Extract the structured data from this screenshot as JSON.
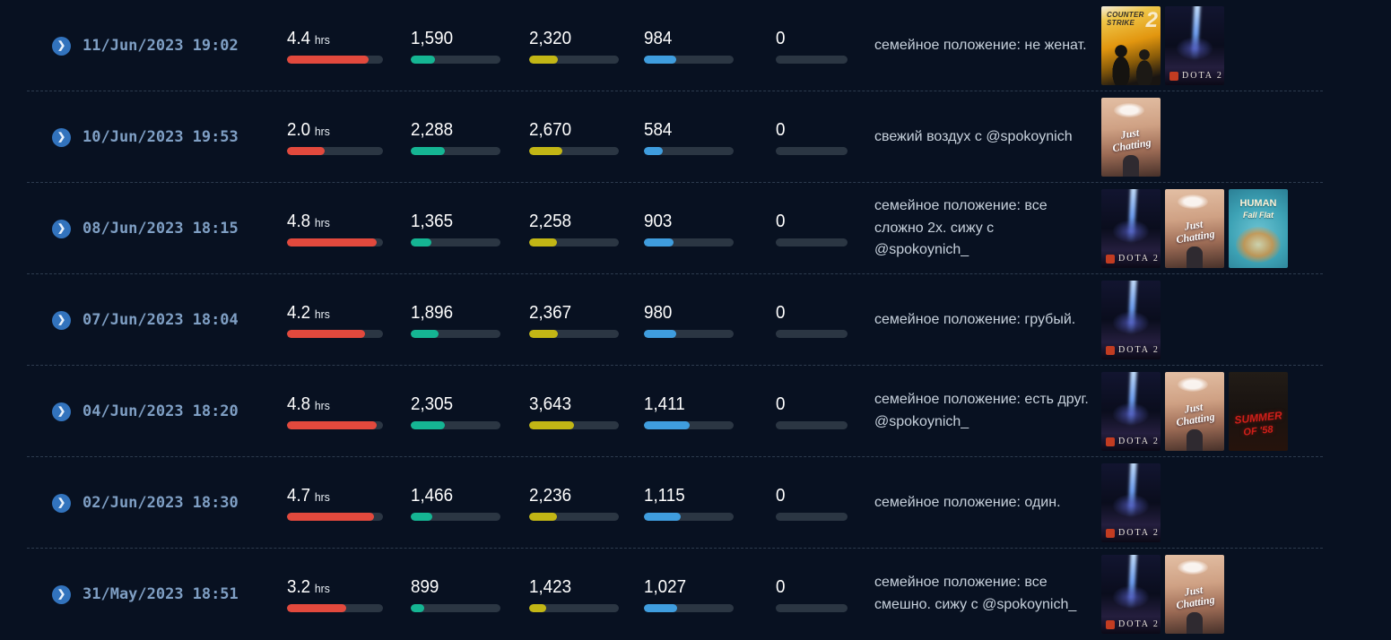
{
  "colors": {
    "red": "#e2493d",
    "green": "#15b593",
    "yellow": "#c2b615",
    "blue": "#3f9dde",
    "track": "#2b3643"
  },
  "thumbs": {
    "counter-strike-2": {
      "game": "Counter-Strike 2",
      "title_line1": "COUNTER",
      "title_line2": "STRIKE",
      "badge": "2"
    },
    "dota-2": {
      "game": "Dota 2",
      "label": "DOTA 2"
    },
    "just-chatting": {
      "game": "Just Chatting",
      "label_line1": "Just",
      "label_line2": "Chatting"
    },
    "human-fall-flat": {
      "game": "Human Fall Flat",
      "label_line1": "HUMAN",
      "label_line2": "Fall Flat"
    },
    "summer-of-58": {
      "game": "Summer of '58",
      "label_line1": "SUMMER",
      "label_line2": "OF '58"
    }
  },
  "streams": [
    {
      "date": "11/Jun/2023",
      "time": "19:02",
      "stats": [
        {
          "value": "4.4",
          "unit": "hrs",
          "pct": 85,
          "color": "red"
        },
        {
          "value": "1,590",
          "pct": 27,
          "color": "green"
        },
        {
          "value": "2,320",
          "pct": 32,
          "color": "yellow"
        },
        {
          "value": "984",
          "pct": 36,
          "color": "blue"
        },
        {
          "value": "0",
          "pct": 0,
          "color": "blue"
        }
      ],
      "title": "семейное положение: не женат.",
      "games": [
        "counter-strike-2",
        "dota-2"
      ]
    },
    {
      "date": "10/Jun/2023",
      "time": "19:53",
      "stats": [
        {
          "value": "2.0",
          "unit": "hrs",
          "pct": 39,
          "color": "red"
        },
        {
          "value": "2,288",
          "pct": 38,
          "color": "green"
        },
        {
          "value": "2,670",
          "pct": 37,
          "color": "yellow"
        },
        {
          "value": "584",
          "pct": 21,
          "color": "blue"
        },
        {
          "value": "0",
          "pct": 0,
          "color": "blue"
        }
      ],
      "title": "свежий воздух с @spokoynich",
      "games": [
        "just-chatting"
      ]
    },
    {
      "date": "08/Jun/2023",
      "time": "18:15",
      "stats": [
        {
          "value": "4.8",
          "unit": "hrs",
          "pct": 93,
          "color": "red"
        },
        {
          "value": "1,365",
          "pct": 23,
          "color": "green"
        },
        {
          "value": "2,258",
          "pct": 31,
          "color": "yellow"
        },
        {
          "value": "903",
          "pct": 33,
          "color": "blue"
        },
        {
          "value": "0",
          "pct": 0,
          "color": "blue"
        }
      ],
      "title": "семейное положение: все сложно 2х. сижу с @spokoynich_",
      "games": [
        "dota-2",
        "just-chatting",
        "human-fall-flat"
      ]
    },
    {
      "date": "07/Jun/2023",
      "time": "18:04",
      "stats": [
        {
          "value": "4.2",
          "unit": "hrs",
          "pct": 81,
          "color": "red"
        },
        {
          "value": "1,896",
          "pct": 31,
          "color": "green"
        },
        {
          "value": "2,367",
          "pct": 32,
          "color": "yellow"
        },
        {
          "value": "980",
          "pct": 36,
          "color": "blue"
        },
        {
          "value": "0",
          "pct": 0,
          "color": "blue"
        }
      ],
      "title": "семейное положение: грубый.",
      "games": [
        "dota-2"
      ]
    },
    {
      "date": "04/Jun/2023",
      "time": "18:20",
      "stats": [
        {
          "value": "4.8",
          "unit": "hrs",
          "pct": 93,
          "color": "red"
        },
        {
          "value": "2,305",
          "pct": 38,
          "color": "green"
        },
        {
          "value": "3,643",
          "pct": 50,
          "color": "yellow"
        },
        {
          "value": "1,411",
          "pct": 51,
          "color": "blue"
        },
        {
          "value": "0",
          "pct": 0,
          "color": "blue"
        }
      ],
      "title": "семейное положение: есть друг. @spokoynich_",
      "games": [
        "dota-2",
        "just-chatting",
        "summer-of-58"
      ]
    },
    {
      "date": "02/Jun/2023",
      "time": "18:30",
      "stats": [
        {
          "value": "4.7",
          "unit": "hrs",
          "pct": 91,
          "color": "red"
        },
        {
          "value": "1,466",
          "pct": 24,
          "color": "green"
        },
        {
          "value": "2,236",
          "pct": 31,
          "color": "yellow"
        },
        {
          "value": "1,115",
          "pct": 41,
          "color": "blue"
        },
        {
          "value": "0",
          "pct": 0,
          "color": "blue"
        }
      ],
      "title": "семейное положение: один.",
      "games": [
        "dota-2"
      ]
    },
    {
      "date": "31/May/2023",
      "time": "18:51",
      "stats": [
        {
          "value": "3.2",
          "unit": "hrs",
          "pct": 62,
          "color": "red"
        },
        {
          "value": "899",
          "pct": 15,
          "color": "green"
        },
        {
          "value": "1,423",
          "pct": 19,
          "color": "yellow"
        },
        {
          "value": "1,027",
          "pct": 37,
          "color": "blue"
        },
        {
          "value": "0",
          "pct": 0,
          "color": "blue"
        }
      ],
      "title": "семейное положение: все смешно. сижу с @spokoynich_",
      "games": [
        "dota-2",
        "just-chatting"
      ]
    }
  ]
}
